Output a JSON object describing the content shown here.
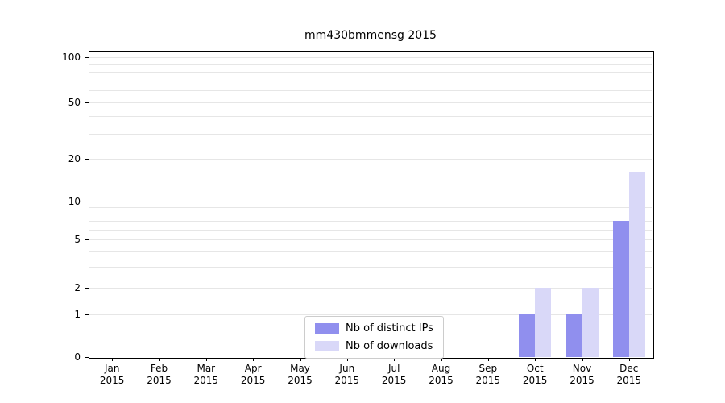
{
  "chart_data": {
    "type": "bar",
    "title": "mm430bmmensg 2015",
    "categories": [
      "Jan",
      "Feb",
      "Mar",
      "Apr",
      "May",
      "Jun",
      "Jul",
      "Aug",
      "Sep",
      "Oct",
      "Nov",
      "Dec"
    ],
    "category_year": "2015",
    "series": [
      {
        "name": "Nb of distinct IPs",
        "color": "#908fee",
        "values": [
          0,
          0,
          0,
          0,
          0,
          0,
          0,
          0,
          0,
          1,
          1,
          7
        ]
      },
      {
        "name": "Nb of downloads",
        "color": "#d9d8f8",
        "values": [
          0,
          0,
          0,
          0,
          0,
          0,
          0,
          0,
          0,
          2,
          2,
          16
        ]
      }
    ],
    "yticks": [
      0,
      1,
      2,
      5,
      10,
      20,
      50,
      100
    ],
    "minor_grid_values": [
      1,
      2,
      3,
      4,
      5,
      6,
      7,
      8,
      9,
      10,
      20,
      30,
      40,
      50,
      60,
      70,
      80,
      90,
      100
    ],
    "ylim": [
      0,
      100
    ],
    "scale": "symlog",
    "xlabel": "",
    "ylabel": "",
    "grid": true,
    "legend_position": "bottom-center",
    "grid_color": "#e6e6e6",
    "background_color": "#ffffff"
  }
}
